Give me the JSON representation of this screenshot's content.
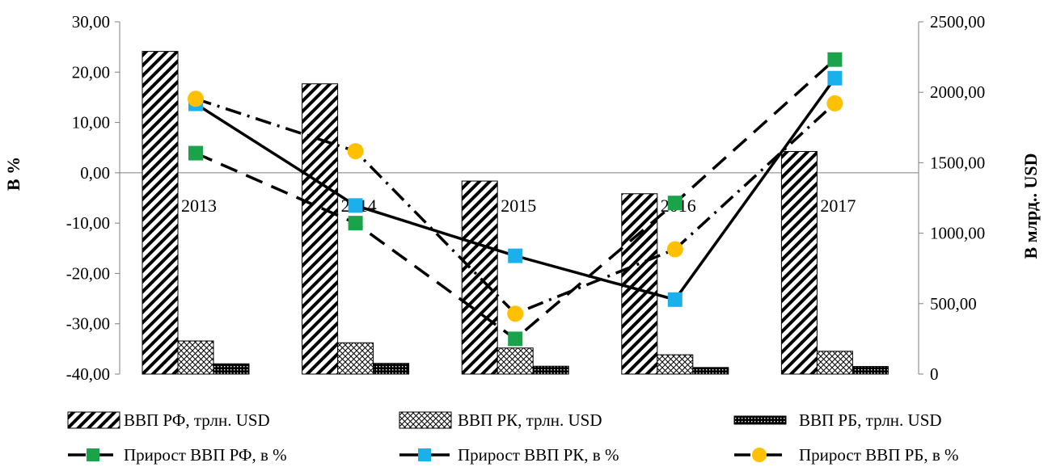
{
  "chart_data": {
    "type": "bar",
    "categories": [
      "2013",
      "2014",
      "2015",
      "2016",
      "2017"
    ],
    "y_left": {
      "label": "В %",
      "min": -40,
      "max": 30,
      "step": 10,
      "tick_labels": [
        "-40,00",
        "-30,00",
        "-20,00",
        "-10,00",
        "0,00",
        "10,00",
        "20,00",
        "30,00"
      ]
    },
    "y_right": {
      "label": "В млрд.. USD",
      "min": 0,
      "max": 2500,
      "step": 500,
      "tick_labels": [
        "0",
        "500,00",
        "1000,00",
        "1500,00",
        "2000,00",
        "2500,00"
      ]
    },
    "bar_series": [
      {
        "name": "ВВП РФ, трлн. USD",
        "pattern": "diagonal-hatch",
        "values": [
          2290,
          2060,
          1370,
          1280,
          1580
        ]
      },
      {
        "name": "ВВП РК, трлн. USD",
        "pattern": "crosshatch",
        "values": [
          235,
          222,
          185,
          137,
          162
        ]
      },
      {
        "name": "ВВП РБ, трлн. USD",
        "pattern": "dense-dots",
        "values": [
          73,
          76,
          56,
          47,
          54
        ]
      }
    ],
    "line_series": [
      {
        "name": "Прирост ВВП РФ, в %",
        "line_style": "dashed",
        "marker": "square",
        "color": "#1aa34a",
        "values": [
          3.9,
          -10.0,
          -33.0,
          -6.0,
          22.5
        ]
      },
      {
        "name": "Прирост ВВП РК, в %",
        "line_style": "solid",
        "marker": "square",
        "color": "#1ab0ec",
        "values": [
          13.7,
          -6.5,
          -16.5,
          -25.2,
          18.8
        ]
      },
      {
        "name": "Прирост ВВП РБ, в %",
        "line_style": "dash-dot",
        "marker": "circle",
        "color": "#ffc000",
        "values": [
          14.7,
          4.3,
          -28.0,
          -15.2,
          13.8
        ]
      }
    ],
    "legend_position": "bottom"
  }
}
